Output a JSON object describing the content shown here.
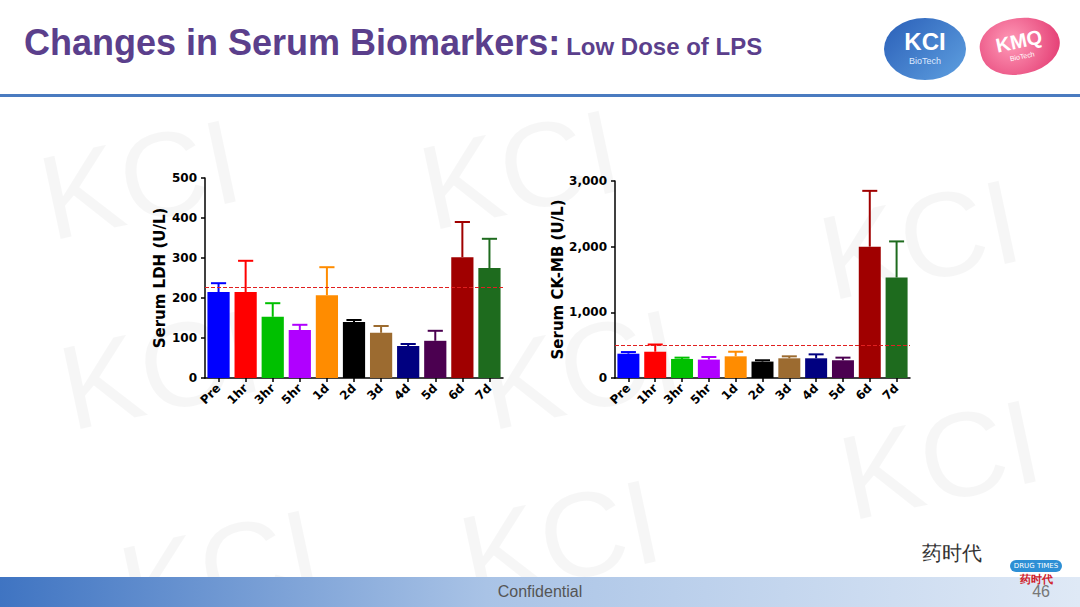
{
  "slide": {
    "title": "Changes in Serum Biomarkers:",
    "subtitle": "Low Dose of LPS",
    "footer": "Confidential",
    "page": "46",
    "watermark": "KCI",
    "logos": [
      {
        "text": "KCI",
        "subtext": "BioTech"
      },
      {
        "text": "KMQ",
        "subtext": "BioTech"
      }
    ],
    "wechat": "药时代",
    "badge": {
      "text": "DRUG TIMES",
      "subtext": "药时代"
    }
  },
  "chart_data": [
    {
      "type": "bar",
      "y_label": "Serum LDH (U/L)",
      "categories": [
        "Pre",
        "1hr",
        "3hr",
        "5hr",
        "1d",
        "2d",
        "3d",
        "4d",
        "5d",
        "6d",
        "7d"
      ],
      "values": [
        215,
        215,
        153,
        120,
        207,
        140,
        113,
        80,
        93,
        302,
        275
      ],
      "errors": [
        22,
        78,
        34,
        13,
        70,
        5,
        17,
        5,
        25,
        88,
        73
      ],
      "colors": [
        "#0000ff",
        "#ff0000",
        "#00c000",
        "#b000ff",
        "#ff8c00",
        "#000000",
        "#9c6b30",
        "#000080",
        "#4b0050",
        "#a00000",
        "#1e6b1e"
      ],
      "reference_line": 228,
      "ylim": [
        0,
        500
      ],
      "yticks": [
        0,
        100,
        200,
        300,
        400,
        500
      ],
      "grid": false
    },
    {
      "type": "bar",
      "y_label": "Serum CK-MB (U/L)",
      "categories": [
        "Pre",
        "1hr",
        "3hr",
        "5hr",
        "1d",
        "2d",
        "3d",
        "4d",
        "5d",
        "6d",
        "7d"
      ],
      "values": [
        370,
        400,
        290,
        280,
        330,
        250,
        300,
        300,
        270,
        2000,
        1530
      ],
      "errors": [
        25,
        110,
        20,
        40,
        70,
        20,
        30,
        60,
        40,
        850,
        550
      ],
      "colors": [
        "#0000ff",
        "#ff0000",
        "#00c000",
        "#b000ff",
        "#ff8c00",
        "#000000",
        "#9c6b30",
        "#000080",
        "#4b0050",
        "#a00000",
        "#1e6b1e"
      ],
      "reference_line": 500,
      "ylim": [
        0,
        3000
      ],
      "yticks": [
        0,
        1000,
        2000,
        3000
      ],
      "grid": false
    }
  ]
}
